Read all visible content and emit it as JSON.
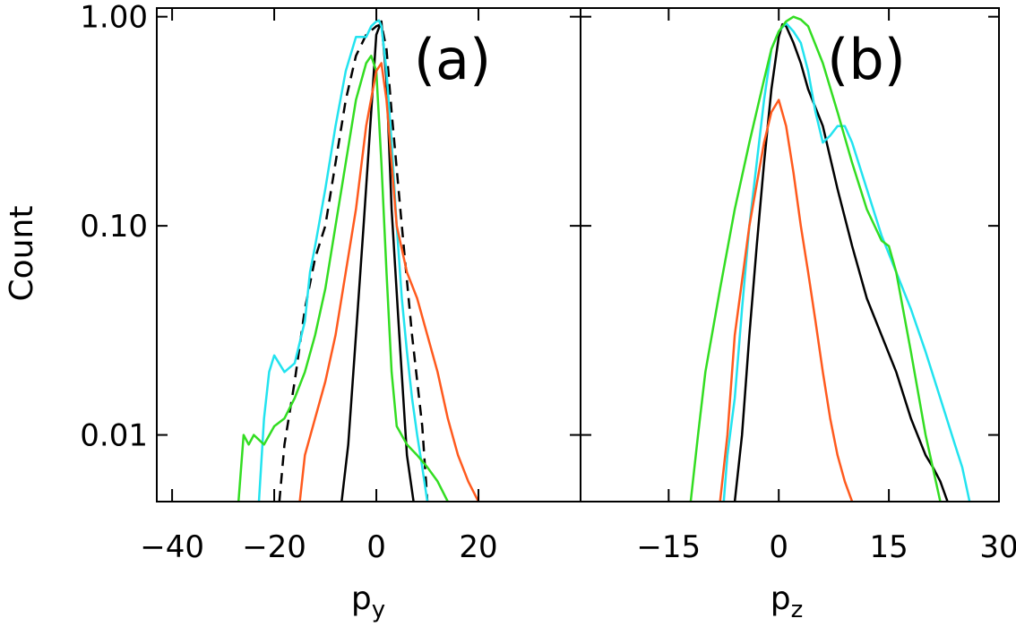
{
  "chart_data": [
    {
      "type": "line",
      "panel_label": "(a)",
      "xlabel": "p",
      "xlabel_sub": "y",
      "ylabel": "Count",
      "yscale": "log",
      "xlim": [
        -43,
        40
      ],
      "ylim": [
        0.0048,
        1.1
      ],
      "xticks": [
        -40,
        -20,
        0,
        20
      ],
      "xtick_labels": [
        "−40",
        "−20",
        "0",
        "20"
      ],
      "yticks": [
        1.0,
        0.1,
        0.01
      ],
      "ytick_labels": [
        "1.00",
        "0.10",
        "0.01"
      ],
      "series": [
        {
          "name": "black",
          "color": "#000000",
          "dash": "",
          "x": [
            -6.8,
            -5.5,
            -4,
            -2.5,
            -1,
            0,
            1,
            2,
            3,
            4.5,
            6,
            7.3
          ],
          "y": [
            0.0048,
            0.009,
            0.03,
            0.1,
            0.35,
            0.82,
            0.95,
            0.5,
            0.12,
            0.03,
            0.008,
            0.0048
          ]
        },
        {
          "name": "black dashed",
          "color": "#000000",
          "dash": "12,8",
          "x": [
            -19,
            -18,
            -16,
            -14,
            -12,
            -10,
            -8,
            -6,
            -4,
            -2,
            0,
            1,
            2,
            3,
            5,
            7,
            9,
            10
          ],
          "y": [
            0.0048,
            0.009,
            0.018,
            0.04,
            0.07,
            0.1,
            0.2,
            0.4,
            0.65,
            0.82,
            0.9,
            0.92,
            0.7,
            0.35,
            0.1,
            0.03,
            0.011,
            0.0048
          ]
        },
        {
          "name": "cyan",
          "color": "#22e3ef",
          "dash": "",
          "x": [
            -23,
            -22,
            -21,
            -20,
            -18,
            -16,
            -14,
            -13,
            -12,
            -10,
            -8,
            -6,
            -4,
            -2,
            -1,
            0,
            0.5,
            1,
            2,
            3,
            4,
            5,
            6,
            7,
            8,
            9,
            10
          ],
          "y": [
            0.0048,
            0.012,
            0.02,
            0.024,
            0.02,
            0.022,
            0.035,
            0.06,
            0.08,
            0.15,
            0.3,
            0.55,
            0.8,
            0.8,
            0.9,
            0.95,
            0.96,
            0.9,
            0.55,
            0.25,
            0.1,
            0.045,
            0.025,
            0.015,
            0.01,
            0.007,
            0.0048
          ]
        },
        {
          "name": "green",
          "color": "#33dd22",
          "dash": "",
          "x": [
            -27,
            -26,
            -25,
            -24,
            -22,
            -20,
            -18,
            -16,
            -14,
            -12,
            -10,
            -8,
            -6,
            -4,
            -2,
            -1,
            0,
            1,
            2,
            3,
            4,
            6,
            8,
            10,
            12,
            14
          ],
          "y": [
            0.0048,
            0.01,
            0.009,
            0.01,
            0.009,
            0.011,
            0.012,
            0.015,
            0.02,
            0.03,
            0.05,
            0.1,
            0.2,
            0.4,
            0.6,
            0.65,
            0.55,
            0.2,
            0.06,
            0.02,
            0.011,
            0.009,
            0.008,
            0.007,
            0.006,
            0.0048
          ]
        },
        {
          "name": "orange",
          "color": "#ff5a1e",
          "dash": "",
          "x": [
            -15,
            -14,
            -12,
            -10,
            -8,
            -6,
            -4,
            -2,
            0,
            1,
            2,
            3,
            4,
            6,
            8,
            10,
            12,
            14,
            16,
            18,
            20
          ],
          "y": [
            0.0048,
            0.008,
            0.012,
            0.018,
            0.03,
            0.06,
            0.12,
            0.3,
            0.55,
            0.6,
            0.4,
            0.2,
            0.1,
            0.06,
            0.045,
            0.03,
            0.02,
            0.012,
            0.008,
            0.006,
            0.0048
          ]
        }
      ]
    },
    {
      "type": "line",
      "panel_label": "(b)",
      "xlabel": "p",
      "xlabel_sub": "z",
      "ylabel": "",
      "yscale": "log",
      "xlim": [
        -27,
        30
      ],
      "ylim": [
        0.0048,
        1.1
      ],
      "xticks": [
        -15,
        0,
        15,
        30
      ],
      "xtick_labels": [
        "−15",
        "0",
        "15",
        "30"
      ],
      "yticks": [
        1.0,
        0.1,
        0.01
      ],
      "ytick_labels": [
        "",
        "",
        ""
      ],
      "series": [
        {
          "name": "black",
          "color": "#000000",
          "dash": "",
          "x": [
            -6,
            -5,
            -4,
            -3,
            -2,
            -1,
            0,
            0.5,
            1,
            2,
            3,
            4,
            6,
            8,
            10,
            12,
            14,
            16,
            18,
            20,
            21,
            22,
            23
          ],
          "y": [
            0.0048,
            0.01,
            0.03,
            0.08,
            0.2,
            0.45,
            0.8,
            0.92,
            0.9,
            0.75,
            0.6,
            0.45,
            0.3,
            0.15,
            0.08,
            0.045,
            0.03,
            0.02,
            0.012,
            0.008,
            0.007,
            0.006,
            0.0048
          ]
        },
        {
          "name": "cyan",
          "color": "#22e3ef",
          "dash": "",
          "x": [
            -7.5,
            -7,
            -6,
            -5,
            -4,
            -3,
            -2,
            -1,
            0,
            1,
            2,
            3,
            4,
            5,
            6,
            7,
            8,
            9,
            10,
            12,
            14,
            16,
            18,
            20,
            22,
            24,
            25,
            26
          ],
          "y": [
            0.0048,
            0.008,
            0.015,
            0.04,
            0.1,
            0.2,
            0.4,
            0.7,
            0.85,
            0.93,
            0.85,
            0.75,
            0.55,
            0.35,
            0.25,
            0.27,
            0.3,
            0.3,
            0.25,
            0.15,
            0.09,
            0.06,
            0.04,
            0.025,
            0.015,
            0.009,
            0.007,
            0.0048
          ]
        },
        {
          "name": "green",
          "color": "#33dd22",
          "dash": "",
          "x": [
            -12,
            -11,
            -10,
            -8,
            -6,
            -4,
            -2,
            -1,
            0,
            1,
            2,
            3,
            4,
            6,
            8,
            10,
            12,
            14,
            15,
            16,
            18,
            20,
            22
          ],
          "y": [
            0.0048,
            0.01,
            0.02,
            0.05,
            0.12,
            0.25,
            0.5,
            0.7,
            0.85,
            0.95,
            1.0,
            0.97,
            0.9,
            0.6,
            0.35,
            0.2,
            0.12,
            0.085,
            0.08,
            0.06,
            0.025,
            0.01,
            0.0048
          ]
        },
        {
          "name": "orange",
          "color": "#ff5a1e",
          "dash": "",
          "x": [
            -8,
            -7,
            -6,
            -4,
            -2,
            -1,
            0,
            1,
            2,
            3,
            4,
            5,
            6,
            7,
            8,
            9,
            10
          ],
          "y": [
            0.0048,
            0.01,
            0.03,
            0.1,
            0.25,
            0.35,
            0.4,
            0.3,
            0.18,
            0.1,
            0.06,
            0.035,
            0.02,
            0.012,
            0.008,
            0.006,
            0.0048
          ]
        }
      ]
    }
  ]
}
